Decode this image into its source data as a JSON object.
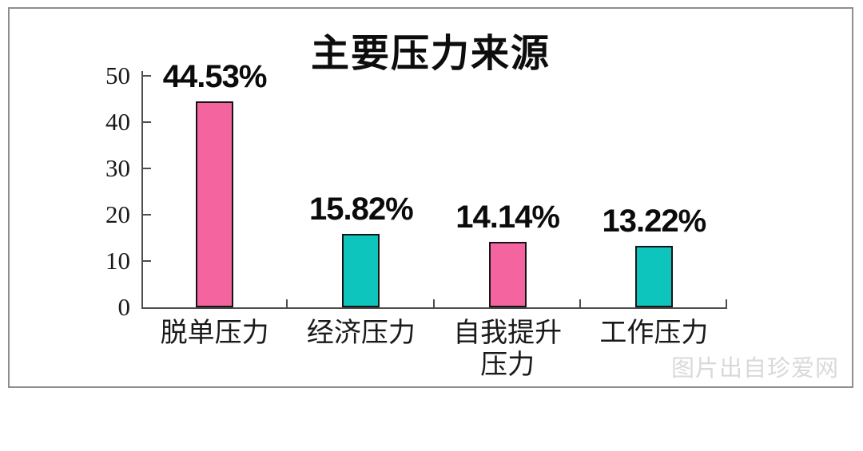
{
  "window": {
    "background": "#ffffff",
    "panel_border": "#8e8e8e",
    "axis_color": "#4d4d4d"
  },
  "chart_data": {
    "type": "bar",
    "title": "主要压力来源",
    "categories": [
      "脱单压力",
      "经济压力",
      "自我提升压力",
      "工作压力"
    ],
    "values": [
      44.53,
      15.82,
      14.14,
      13.22
    ],
    "value_labels": [
      "44.53%",
      "15.82%",
      "14.14%",
      "13.22%"
    ],
    "bar_colors": [
      "#F4649F",
      "#0EC5BD",
      "#F4649F",
      "#0EC5BD"
    ],
    "bar_border_color": "#141414",
    "xlabel": "",
    "ylabel": "",
    "y_ticks": [
      0,
      10,
      20,
      30,
      40,
      50
    ],
    "ylim": [
      0,
      50
    ],
    "grid": false,
    "legend": "none"
  },
  "watermark": {
    "text": "图片出自珍爱网",
    "color": "#d9d9d9"
  }
}
